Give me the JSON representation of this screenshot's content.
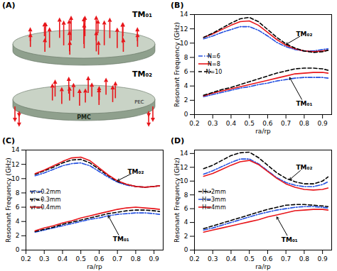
{
  "chart_data": [
    {
      "type": "diagram",
      "title": "(A)",
      "labels": [
        "TM₀₁",
        "TM₀₂",
        "PEC",
        "PMC"
      ]
    },
    {
      "type": "line",
      "title": "(B)",
      "x_label": "ra/rp",
      "y_label": "Resonant Frequency (GHz)",
      "x": [
        0.25,
        0.3,
        0.35,
        0.4,
        0.45,
        0.5,
        0.55,
        0.6,
        0.65,
        0.7,
        0.75,
        0.8,
        0.85,
        0.9,
        0.93
      ],
      "xlim": [
        0.2,
        0.95
      ],
      "xticks": [
        0.2,
        0.3,
        0.4,
        0.5,
        0.6,
        0.7,
        0.8,
        0.9
      ],
      "ylim": [
        0,
        14
      ],
      "yticks": [
        0,
        2,
        4,
        6,
        8,
        10,
        12,
        14
      ],
      "legend": "left",
      "series": [
        {
          "name": "N=6",
          "color": "#2450e0",
          "line_style": "dashdot",
          "values": [
            10.6,
            11.0,
            11.5,
            11.9,
            12.3,
            12.3,
            11.8,
            11.0,
            10.1,
            9.5,
            9.1,
            8.9,
            8.9,
            9.1,
            9.2
          ]
        },
        {
          "name": "N=8",
          "color": "#e8161b",
          "line_style": "solid",
          "values": [
            10.8,
            11.3,
            11.9,
            12.5,
            13.0,
            13.1,
            12.5,
            11.5,
            10.5,
            9.7,
            9.2,
            8.9,
            8.8,
            8.9,
            9.0
          ]
        },
        {
          "name": "N=10",
          "color": "#000000",
          "line_style": "dash",
          "values": [
            10.8,
            11.4,
            12.1,
            12.8,
            13.4,
            13.6,
            13.0,
            11.9,
            10.8,
            9.9,
            9.3,
            8.9,
            8.7,
            8.8,
            9.0
          ]
        },
        {
          "name": "N=6",
          "color": "#2450e0",
          "line_style": "dashdot",
          "values": [
            2.5,
            2.8,
            3.1,
            3.4,
            3.7,
            3.9,
            4.2,
            4.4,
            4.7,
            4.9,
            5.1,
            5.2,
            5.2,
            5.2,
            5.1
          ]
        },
        {
          "name": "N=8",
          "color": "#e8161b",
          "line_style": "solid",
          "values": [
            2.6,
            3.0,
            3.3,
            3.6,
            3.9,
            4.2,
            4.5,
            4.8,
            5.1,
            5.4,
            5.7,
            5.8,
            5.9,
            5.9,
            5.8
          ]
        },
        {
          "name": "N=10",
          "color": "#000000",
          "line_style": "dash",
          "values": [
            2.7,
            3.1,
            3.5,
            3.8,
            4.2,
            4.6,
            5.0,
            5.4,
            5.8,
            6.1,
            6.4,
            6.5,
            6.5,
            6.4,
            6.2
          ]
        }
      ],
      "annotations": [
        {
          "text": "TM₀₂",
          "x": 0.8,
          "y": 11.3,
          "target": [
            0.7,
            9.8
          ]
        },
        {
          "text": "TM₀₁",
          "x": 0.8,
          "y": 1.5,
          "target": [
            0.72,
            5.2
          ]
        }
      ]
    },
    {
      "type": "line",
      "title": "(C)",
      "x_label": "ra/rp",
      "y_label": "Resonant Frequency (GHz)",
      "x": [
        0.25,
        0.3,
        0.35,
        0.4,
        0.45,
        0.5,
        0.55,
        0.6,
        0.65,
        0.7,
        0.75,
        0.8,
        0.85,
        0.9,
        0.93
      ],
      "xlim": [
        0.2,
        0.95
      ],
      "xticks": [
        0.2,
        0.3,
        0.4,
        0.5,
        0.6,
        0.7,
        0.8,
        0.9
      ],
      "ylim": [
        0,
        14
      ],
      "yticks": [
        0,
        2,
        4,
        6,
        8,
        10,
        12,
        14
      ],
      "legend": "left",
      "series": [
        {
          "name": "vr=0.2mm",
          "color": "#2450e0",
          "line_style": "dashdot",
          "values": [
            10.4,
            10.8,
            11.3,
            11.8,
            12.1,
            12.2,
            11.8,
            11.0,
            10.2,
            9.5,
            9.1,
            8.9,
            8.8,
            8.9,
            9.0
          ]
        },
        {
          "name": "vr=0.3mm",
          "color": "#000000",
          "line_style": "dash",
          "values": [
            10.6,
            11.1,
            11.6,
            12.2,
            12.6,
            12.7,
            12.2,
            11.3,
            10.4,
            9.6,
            9.2,
            8.9,
            8.8,
            8.9,
            9.0
          ]
        },
        {
          "name": "vr=0.4mm",
          "color": "#e8161b",
          "line_style": "solid",
          "values": [
            10.7,
            11.2,
            11.8,
            12.4,
            12.9,
            13.0,
            12.5,
            11.5,
            10.5,
            9.7,
            9.2,
            8.9,
            8.8,
            8.9,
            9.0
          ]
        },
        {
          "name": "vr=0.2mm",
          "color": "#2450e0",
          "line_style": "dashdot",
          "values": [
            2.5,
            2.8,
            3.1,
            3.4,
            3.7,
            4.0,
            4.3,
            4.5,
            4.8,
            5.0,
            5.1,
            5.2,
            5.2,
            5.1,
            5.0
          ]
        },
        {
          "name": "vr=0.3mm",
          "color": "#000000",
          "line_style": "dash",
          "values": [
            2.6,
            2.9,
            3.2,
            3.6,
            3.9,
            4.2,
            4.5,
            4.8,
            5.1,
            5.3,
            5.5,
            5.6,
            5.6,
            5.5,
            5.4
          ]
        },
        {
          "name": "vr=0.4mm",
          "color": "#e8161b",
          "line_style": "solid",
          "values": [
            2.7,
            3.1,
            3.4,
            3.8,
            4.1,
            4.5,
            4.8,
            5.1,
            5.4,
            5.7,
            5.9,
            6.0,
            5.9,
            5.8,
            5.7
          ]
        }
      ],
      "annotations": [
        {
          "text": "TM₀₂",
          "x": 0.8,
          "y": 11.0,
          "target": [
            0.7,
            9.7
          ]
        },
        {
          "text": "TM₀₁",
          "x": 0.72,
          "y": 1.5,
          "target": [
            0.65,
            4.8
          ]
        }
      ]
    },
    {
      "type": "line",
      "title": "(D)",
      "x_label": "ra/rp",
      "y_label": "Resonant Frequency (GHz)",
      "x": [
        0.25,
        0.3,
        0.35,
        0.4,
        0.45,
        0.5,
        0.55,
        0.6,
        0.65,
        0.7,
        0.75,
        0.8,
        0.85,
        0.9,
        0.93
      ],
      "xlim": [
        0.2,
        0.95
      ],
      "xticks": [
        0.2,
        0.3,
        0.4,
        0.5,
        0.6,
        0.7,
        0.8,
        0.9
      ],
      "ylim": [
        0,
        14.5
      ],
      "yticks": [
        0,
        2,
        4,
        6,
        8,
        10,
        12,
        14
      ],
      "legend": "left",
      "series": [
        {
          "name": "H=2mm",
          "color": "#000000",
          "line_style": "dash",
          "values": [
            11.8,
            12.3,
            13.0,
            13.7,
            14.1,
            14.2,
            13.4,
            12.3,
            11.2,
            10.4,
            9.9,
            9.6,
            9.6,
            10.0,
            10.6
          ]
        },
        {
          "name": "H=3mm",
          "color": "#2450e0",
          "line_style": "dashdot",
          "values": [
            11.0,
            11.5,
            12.1,
            12.7,
            13.2,
            13.2,
            12.5,
            11.5,
            10.5,
            9.8,
            9.4,
            9.2,
            9.2,
            9.5,
            9.9
          ]
        },
        {
          "name": "H=4mm",
          "color": "#e8161b",
          "line_style": "solid",
          "values": [
            10.7,
            11.1,
            11.7,
            12.3,
            12.8,
            13.0,
            12.4,
            11.4,
            10.4,
            9.6,
            9.1,
            8.8,
            8.7,
            8.8,
            9.0
          ]
        },
        {
          "name": "H=2mm",
          "color": "#000000",
          "line_style": "dash",
          "values": [
            3.1,
            3.5,
            3.9,
            4.3,
            4.7,
            5.1,
            5.5,
            5.9,
            6.2,
            6.5,
            6.6,
            6.6,
            6.5,
            6.4,
            6.3
          ]
        },
        {
          "name": "H=3mm",
          "color": "#2450e0",
          "line_style": "dashdot",
          "values": [
            2.9,
            3.2,
            3.6,
            4.0,
            4.4,
            4.8,
            5.2,
            5.5,
            5.8,
            6.0,
            6.2,
            6.3,
            6.3,
            6.2,
            6.1
          ]
        },
        {
          "name": "H=4mm",
          "color": "#e8161b",
          "line_style": "solid",
          "values": [
            2.6,
            2.9,
            3.2,
            3.5,
            3.8,
            4.1,
            4.4,
            4.8,
            5.1,
            5.4,
            5.7,
            5.8,
            5.9,
            5.9,
            5.8
          ]
        }
      ],
      "annotations": [
        {
          "text": "TM₀₂",
          "x": 0.8,
          "y": 12.0,
          "target": [
            0.72,
            10.2
          ]
        },
        {
          "text": "TM₀₁",
          "x": 0.72,
          "y": 1.5,
          "target": [
            0.65,
            4.8
          ]
        }
      ]
    }
  ]
}
